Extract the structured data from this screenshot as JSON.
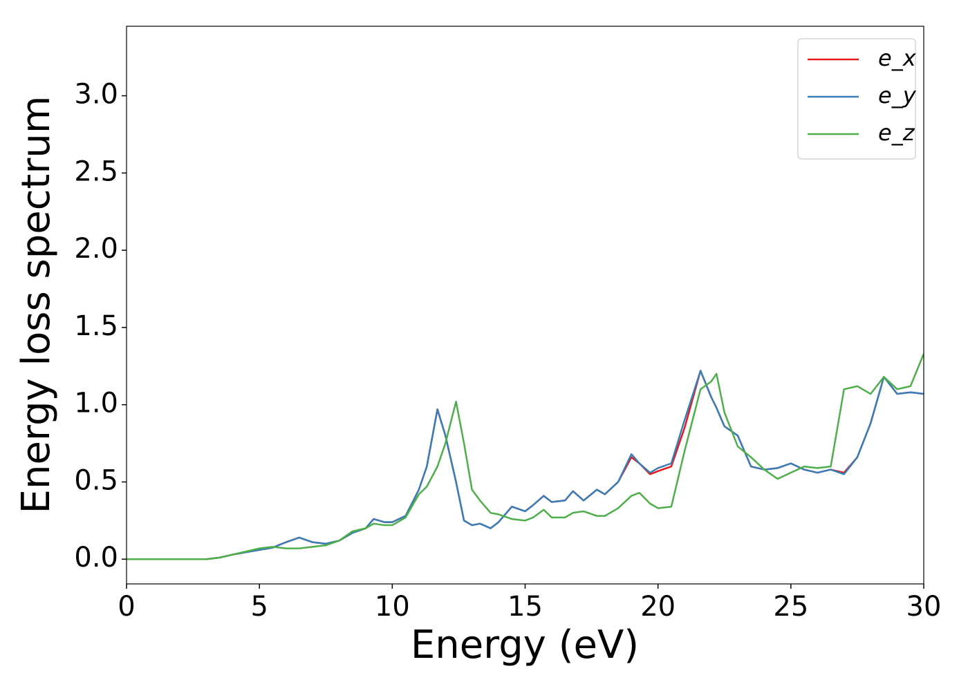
{
  "chart_data": {
    "type": "line",
    "x_label": "Energy (eV)",
    "y_label": "Energy loss spectrum",
    "x": [
      0,
      1,
      2,
      3,
      3.5,
      4,
      4.5,
      5,
      5.5,
      6,
      6.5,
      7,
      7.5,
      8,
      8.5,
      9,
      9.3,
      9.7,
      10,
      10.5,
      11,
      11.3,
      11.7,
      12,
      12.4,
      12.7,
      13,
      13.3,
      13.7,
      14,
      14.5,
      15,
      15.3,
      15.7,
      16,
      16.5,
      16.8,
      17.2,
      17.7,
      18,
      18.5,
      19,
      19.3,
      19.7,
      20,
      20.5,
      21,
      21.6,
      22,
      22.2,
      22.5,
      23,
      23.5,
      24,
      24.5,
      25,
      25.5,
      26,
      26.5,
      27,
      27.5,
      28,
      28.5,
      29,
      29.5,
      30
    ],
    "series": [
      {
        "name": "e_x",
        "color": "#e41a1c",
        "values": [
          0,
          0,
          0,
          0,
          0.01,
          0.03,
          0.045,
          0.06,
          0.075,
          0.11,
          0.14,
          0.11,
          0.1,
          0.12,
          0.17,
          0.2,
          0.26,
          0.24,
          0.24,
          0.28,
          0.45,
          0.6,
          0.97,
          0.8,
          0.5,
          0.25,
          0.22,
          0.23,
          0.2,
          0.24,
          0.34,
          0.31,
          0.35,
          0.41,
          0.37,
          0.38,
          0.44,
          0.38,
          0.45,
          0.42,
          0.5,
          0.66,
          0.62,
          0.55,
          0.57,
          0.6,
          0.85,
          1.22,
          1.05,
          0.98,
          0.86,
          0.8,
          0.6,
          0.58,
          0.59,
          0.62,
          0.58,
          0.56,
          0.58,
          0.56,
          0.66,
          0.88,
          1.18,
          1.07,
          1.08,
          1.07
        ]
      },
      {
        "name": "e_y",
        "color": "#377eb8",
        "values": [
          0,
          0,
          0,
          0,
          0.01,
          0.03,
          0.045,
          0.06,
          0.075,
          0.11,
          0.14,
          0.11,
          0.1,
          0.12,
          0.17,
          0.2,
          0.26,
          0.24,
          0.24,
          0.28,
          0.45,
          0.6,
          0.97,
          0.8,
          0.5,
          0.25,
          0.22,
          0.23,
          0.2,
          0.24,
          0.34,
          0.31,
          0.35,
          0.41,
          0.37,
          0.38,
          0.44,
          0.38,
          0.45,
          0.42,
          0.5,
          0.68,
          0.62,
          0.56,
          0.59,
          0.62,
          0.9,
          1.22,
          1.05,
          0.98,
          0.86,
          0.8,
          0.6,
          0.58,
          0.59,
          0.62,
          0.58,
          0.56,
          0.58,
          0.55,
          0.66,
          0.88,
          1.18,
          1.07,
          1.08,
          1.07
        ]
      },
      {
        "name": "e_z",
        "color": "#4daf4a",
        "values": [
          0,
          0,
          0,
          0,
          0.01,
          0.03,
          0.05,
          0.07,
          0.08,
          0.07,
          0.07,
          0.08,
          0.09,
          0.12,
          0.18,
          0.2,
          0.23,
          0.22,
          0.22,
          0.27,
          0.42,
          0.47,
          0.6,
          0.75,
          1.02,
          0.75,
          0.45,
          0.38,
          0.3,
          0.29,
          0.26,
          0.25,
          0.27,
          0.32,
          0.27,
          0.27,
          0.3,
          0.31,
          0.28,
          0.28,
          0.33,
          0.41,
          0.43,
          0.36,
          0.33,
          0.34,
          0.7,
          1.1,
          1.15,
          1.2,
          0.95,
          0.73,
          0.66,
          0.58,
          0.52,
          0.56,
          0.6,
          0.59,
          0.6,
          1.1,
          1.12,
          1.07,
          1.18,
          1.1,
          1.12,
          1.33
        ]
      }
    ],
    "xlim": [
      0,
      30
    ],
    "xticks": [
      0,
      5,
      10,
      15,
      20,
      25,
      30
    ],
    "ylim": [
      -0.16,
      3.45
    ],
    "yticks": [
      {
        "value": 0,
        "label": "0.0"
      },
      0.5,
      {
        "value": 1,
        "label": "1.0"
      },
      1.5,
      {
        "value": 2,
        "label": "2.0"
      },
      2.5,
      {
        "value": 3,
        "label": "3.0"
      }
    ],
    "grid": false,
    "legend": "upper right"
  }
}
